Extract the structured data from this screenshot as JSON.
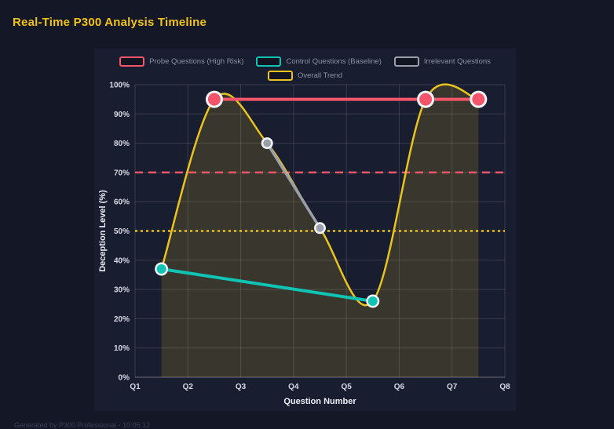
{
  "page": {
    "title": "Real-Time P300 Analysis Timeline",
    "title_color": "#f1c21b",
    "footer": "Generated by P300 Professional - 10:05:12"
  },
  "chart_data": {
    "type": "line",
    "title": "Real-Time P300 Analysis Timeline",
    "xlabel": "Question Number",
    "ylabel": "Deception Level (%)",
    "x_ticks": [
      "Q1",
      "Q2",
      "Q3",
      "Q4",
      "Q5",
      "Q6",
      "Q7",
      "Q8"
    ],
    "x_range": [
      1,
      8
    ],
    "ylim": [
      0,
      100
    ],
    "y_tick_step": 10,
    "y_tick_suffix": "%",
    "grid": true,
    "legend_position": "top",
    "series": [
      {
        "name": "Overall Trend",
        "color": "#e9c31e",
        "points": [
          [
            1.5,
            37
          ],
          [
            2.5,
            95
          ],
          [
            3.5,
            80
          ],
          [
            4.5,
            51
          ],
          [
            5.5,
            26
          ],
          [
            6.5,
            95
          ],
          [
            7.5,
            95
          ]
        ],
        "smooth": true,
        "fill": true,
        "fill_color": "rgba(233,195,30,0.16)",
        "width": 2.5,
        "marker_outer": 0,
        "marker_inner": 0
      },
      {
        "name": "Irrelevant Questions",
        "color": "#9aa0ab",
        "points": [
          [
            3.5,
            80
          ],
          [
            4.5,
            51
          ]
        ],
        "smooth": false,
        "fill": false,
        "width": 3.5,
        "marker_outer": 7.5,
        "marker_inner": 5
      },
      {
        "name": "Control Questions (Baseline)",
        "color": "#0fc3b5",
        "points": [
          [
            1.5,
            37
          ],
          [
            5.5,
            26
          ]
        ],
        "smooth": false,
        "fill": false,
        "width": 4,
        "marker_outer": 8.5,
        "marker_inner": 6
      },
      {
        "name": "Probe Questions (High Risk)",
        "color": "#f4556a",
        "points": [
          [
            2.5,
            95
          ],
          [
            6.5,
            95
          ],
          [
            7.5,
            95
          ]
        ],
        "smooth": false,
        "fill": false,
        "width": 4,
        "marker_outer": 11,
        "marker_inner": 8
      }
    ],
    "legend_order": [
      "Probe Questions (High Risk)",
      "Control Questions (Baseline)",
      "Irrelevant Questions",
      "Overall Trend"
    ],
    "thresholds": [
      {
        "value": 70,
        "color": "#f4556a",
        "dash": "10 7",
        "width": 2.5
      },
      {
        "value": 50,
        "color": "#e9c31e",
        "dash": "3 4",
        "width": 2.5
      }
    ],
    "marker_ring_color": "#f3f5f9",
    "grid_color": "rgba(255,255,255,0.13)",
    "axis_line_color": "rgba(255,255,255,0.35)",
    "tick_color": "#d7dae4",
    "axis_title_color": "#eceef5"
  }
}
